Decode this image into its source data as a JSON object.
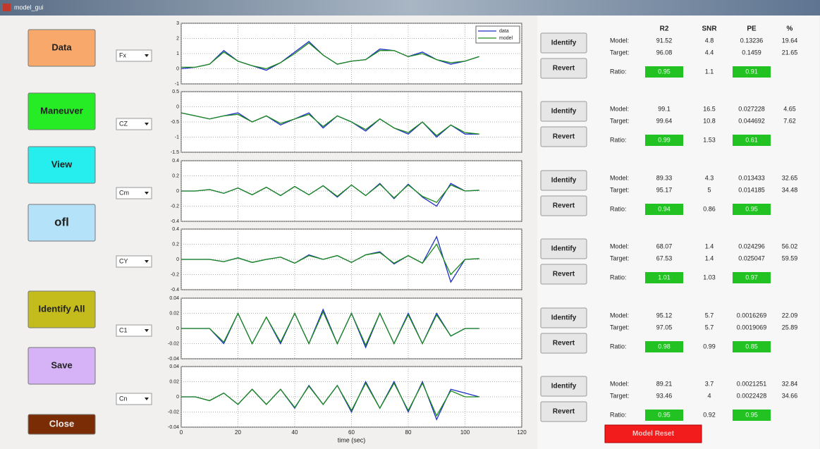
{
  "window": {
    "title": "model_gui"
  },
  "buttons": [
    {
      "label": "Data",
      "color": "#f9a86c"
    },
    {
      "label": "Maneuver",
      "color": "#26ec26"
    },
    {
      "label": "View",
      "color": "#26eeee"
    },
    {
      "label": "ofl",
      "color": "#b4e2f8"
    },
    {
      "label": "Identify All",
      "color": "#c4bc1c"
    },
    {
      "label": "Save",
      "color": "#d6b2f6"
    },
    {
      "label": "Close",
      "color": "#7a2c04"
    }
  ],
  "labels": {
    "identify": "Identify",
    "revert": "Revert",
    "model": "Model:",
    "target": "Target:",
    "ratio": "Ratio:",
    "reset": "Model Reset"
  },
  "columns": [
    "R2",
    "SNR",
    "PE",
    "%"
  ],
  "legend": [
    {
      "name": "data",
      "color": "#1c2fc4"
    },
    {
      "name": "model",
      "color": "#1d8a1d"
    }
  ],
  "time": {
    "label": "time (sec)",
    "xlim": [
      0,
      120
    ],
    "xticks": [
      0,
      20,
      40,
      60,
      80,
      100,
      120
    ],
    "x": [
      0,
      5,
      10,
      15,
      20,
      25,
      30,
      35,
      40,
      45,
      50,
      55,
      60,
      65,
      70,
      75,
      80,
      85,
      90,
      95,
      100,
      105
    ]
  },
  "panels": [
    {
      "channel": "Fx",
      "ylim": [
        -1,
        3
      ],
      "yticks": [
        -1,
        0,
        1,
        2,
        3
      ],
      "data": [
        0,
        0.1,
        0.3,
        1.2,
        0.5,
        0.2,
        -0.1,
        0.4,
        1.1,
        1.8,
        0.9,
        0.3,
        0.5,
        0.6,
        1.3,
        1.2,
        0.8,
        1.1,
        0.6,
        0.3,
        0.5,
        0.8
      ],
      "model": [
        0.1,
        0.1,
        0.3,
        1.1,
        0.5,
        0.2,
        0,
        0.4,
        1,
        1.7,
        0.9,
        0.3,
        0.5,
        0.6,
        1.2,
        1.2,
        0.8,
        1,
        0.6,
        0.4,
        0.5,
        0.8
      ],
      "stats": {
        "model": [
          91.52,
          4.8,
          0.13236,
          19.64
        ],
        "target": [
          96.08,
          4.4,
          0.1459,
          21.65
        ],
        "ratio": [
          0.95,
          1.1,
          0.91
        ]
      }
    },
    {
      "channel": "CZ",
      "ylim": [
        -1.5,
        0.5
      ],
      "yticks": [
        -1.5,
        -1,
        -0.5,
        0,
        0.5
      ],
      "data": [
        -0.2,
        -0.3,
        -0.4,
        -0.3,
        -0.2,
        -0.5,
        -0.3,
        -0.6,
        -0.4,
        -0.2,
        -0.7,
        -0.3,
        -0.5,
        -0.8,
        -0.4,
        -0.7,
        -0.9,
        -0.5,
        -1,
        -0.6,
        -0.9,
        -0.9
      ],
      "model": [
        -0.2,
        -0.3,
        -0.4,
        -0.3,
        -0.25,
        -0.5,
        -0.3,
        -0.55,
        -0.4,
        -0.25,
        -0.65,
        -0.3,
        -0.5,
        -0.75,
        -0.4,
        -0.7,
        -0.85,
        -0.5,
        -0.95,
        -0.6,
        -0.85,
        -0.9
      ],
      "stats": {
        "model": [
          99.1,
          16.5,
          0.027228,
          4.65
        ],
        "target": [
          99.64,
          10.8,
          0.044692,
          7.62
        ],
        "ratio": [
          0.99,
          1.53,
          0.61
        ]
      }
    },
    {
      "channel": "Cm",
      "ylim": [
        -0.4,
        0.4
      ],
      "yticks": [
        -0.4,
        -0.2,
        0,
        0.2,
        0.4
      ],
      "data": [
        0,
        0,
        0.02,
        -0.03,
        0.04,
        -0.05,
        0.05,
        -0.06,
        0.06,
        -0.05,
        0.07,
        -0.08,
        0.08,
        -0.06,
        0.1,
        -0.1,
        0.09,
        -0.08,
        -0.2,
        0.1,
        0,
        0.01
      ],
      "model": [
        0,
        0,
        0.02,
        -0.03,
        0.04,
        -0.05,
        0.05,
        -0.06,
        0.06,
        -0.05,
        0.07,
        -0.07,
        0.08,
        -0.06,
        0.09,
        -0.09,
        0.08,
        -0.07,
        -0.15,
        0.08,
        0,
        0.01
      ],
      "stats": {
        "model": [
          89.33,
          4.3,
          0.013433,
          32.65
        ],
        "target": [
          95.17,
          5,
          0.014185,
          34.48
        ],
        "ratio": [
          0.94,
          0.86,
          0.95
        ]
      }
    },
    {
      "channel": "CY",
      "ylim": [
        -0.4,
        0.4
      ],
      "yticks": [
        -0.4,
        -0.2,
        0,
        0.2,
        0.4
      ],
      "data": [
        0,
        0,
        0,
        -0.03,
        0.02,
        -0.04,
        0,
        0.03,
        -0.05,
        0.06,
        0,
        0.05,
        -0.04,
        0.06,
        0.1,
        -0.06,
        0.05,
        -0.05,
        0.3,
        -0.3,
        0,
        0.01
      ],
      "model": [
        0,
        0,
        0,
        -0.03,
        0.02,
        -0.04,
        0,
        0.03,
        -0.05,
        0.05,
        0,
        0.05,
        -0.04,
        0.06,
        0.09,
        -0.05,
        0.05,
        -0.05,
        0.2,
        -0.2,
        0,
        0.01
      ],
      "stats": {
        "model": [
          68.07,
          1.4,
          0.024296,
          56.02
        ],
        "target": [
          67.53,
          1.4,
          0.025047,
          59.59
        ],
        "ratio": [
          1.01,
          1.03,
          0.97
        ]
      }
    },
    {
      "channel": "C1",
      "ylim": [
        -0.04,
        0.04
      ],
      "yticks": [
        -0.04,
        -0.02,
        0,
        0.02,
        0.04
      ],
      "data": [
        0,
        0,
        0,
        -0.02,
        0.02,
        -0.02,
        0.015,
        -0.02,
        0.02,
        -0.02,
        0.025,
        -0.02,
        0.02,
        -0.025,
        0.02,
        -0.02,
        0.02,
        -0.02,
        0.02,
        -0.01,
        0,
        0
      ],
      "model": [
        0,
        0,
        0,
        -0.018,
        0.02,
        -0.02,
        0.015,
        -0.018,
        0.02,
        -0.02,
        0.022,
        -0.02,
        0.02,
        -0.022,
        0.02,
        -0.02,
        0.018,
        -0.02,
        0.018,
        -0.01,
        0,
        0
      ],
      "stats": {
        "model": [
          95.12,
          5.7,
          0.0016269,
          22.09
        ],
        "target": [
          97.05,
          5.7,
          0.0019069,
          25.89
        ],
        "ratio": [
          0.98,
          0.99,
          0.85
        ]
      }
    },
    {
      "channel": "Cn",
      "ylim": [
        -0.04,
        0.04
      ],
      "yticks": [
        -0.04,
        -0.02,
        0,
        0.02,
        0.04
      ],
      "data": [
        0,
        0,
        -0.005,
        0.005,
        -0.01,
        0.01,
        -0.01,
        0.01,
        -0.015,
        0.015,
        -0.01,
        0.015,
        -0.02,
        0.02,
        -0.015,
        0.02,
        -0.02,
        0.02,
        -0.03,
        0.01,
        0.005,
        0
      ],
      "model": [
        0,
        0,
        -0.005,
        0.005,
        -0.01,
        0.01,
        -0.01,
        0.01,
        -0.014,
        0.014,
        -0.01,
        0.015,
        -0.018,
        0.018,
        -0.015,
        0.018,
        -0.018,
        0.018,
        -0.025,
        0.008,
        0,
        0
      ],
      "stats": {
        "model": [
          89.21,
          3.7,
          0.0021251,
          32.84
        ],
        "target": [
          93.46,
          4,
          0.0022428,
          34.66
        ],
        "ratio": [
          0.95,
          0.92,
          0.95
        ]
      }
    }
  ]
}
